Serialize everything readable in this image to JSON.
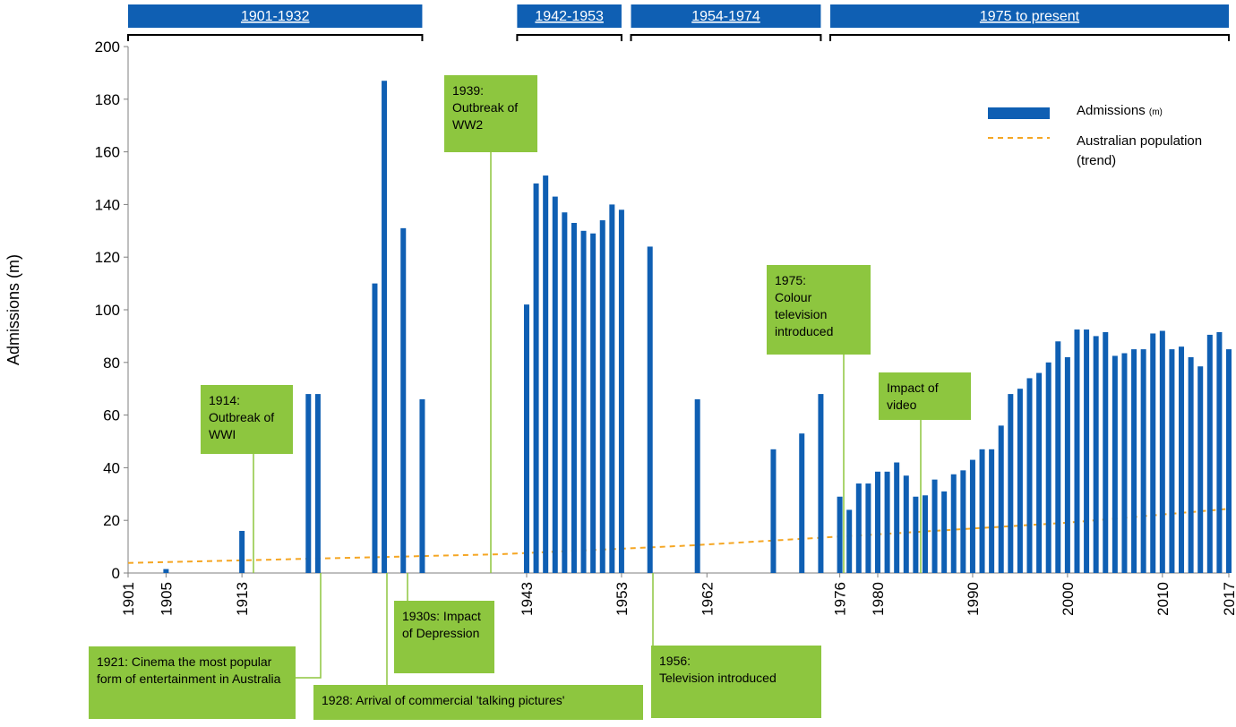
{
  "chart_data": {
    "type": "bar",
    "ylabel": "Admissions (m)",
    "xlabel": "",
    "ylim": [
      0,
      200
    ],
    "y_ticks": [
      0,
      20,
      40,
      60,
      80,
      100,
      120,
      140,
      160,
      180,
      200
    ],
    "x_range": [
      1901,
      2017
    ],
    "x_tick_labels": [
      "1901",
      "1905",
      "1913",
      "1943",
      "1953",
      "1962",
      "1976",
      "1980",
      "1990",
      "2000",
      "2010",
      "2017"
    ],
    "grid": false,
    "legend_position": "top-right",
    "colors": {
      "bars": "#0f5fb3",
      "trend": "#f5a623",
      "annotation_fill": "#8dc63f",
      "period_band": "#0f5fb3"
    },
    "series": [
      {
        "name": "Admissions",
        "name_unit": "(m)",
        "type": "bar",
        "x": [
          1905,
          1913,
          1920,
          1921,
          1927,
          1928,
          1930,
          1932,
          1943,
          1944,
          1945,
          1946,
          1947,
          1948,
          1949,
          1950,
          1951,
          1952,
          1953,
          1956,
          1961,
          1969,
          1972,
          1974,
          1976,
          1977,
          1978,
          1979,
          1980,
          1981,
          1982,
          1983,
          1984,
          1985,
          1986,
          1987,
          1988,
          1989,
          1990,
          1991,
          1992,
          1993,
          1994,
          1995,
          1996,
          1997,
          1998,
          1999,
          2000,
          2001,
          2002,
          2003,
          2004,
          2005,
          2006,
          2007,
          2008,
          2009,
          2010,
          2011,
          2012,
          2013,
          2014,
          2015,
          2016,
          2017
        ],
        "values": [
          1.5,
          16,
          68,
          68,
          110,
          187,
          131,
          66,
          102,
          148,
          151,
          143,
          137,
          133,
          130,
          129,
          134,
          140,
          138,
          124,
          66,
          47,
          53,
          68,
          29,
          24,
          34,
          34,
          38.5,
          38.5,
          42,
          37,
          29,
          29.5,
          35.5,
          31,
          37.5,
          39,
          43,
          47,
          47,
          56,
          68,
          70,
          74,
          76,
          80,
          88,
          82,
          92.5,
          92.5,
          90,
          91.5,
          82.5,
          83.5,
          85,
          85,
          91,
          92,
          85,
          86,
          82,
          78.5,
          90.5,
          91.5,
          85
        ]
      },
      {
        "name": "Australian population\n(trend)",
        "type": "line",
        "style": "dashed",
        "x": [
          1901,
          1920,
          1940,
          1960,
          1980,
          2000,
          2017
        ],
        "values": [
          3.8,
          5.4,
          7.1,
          10.4,
          14.7,
          19.1,
          24.4
        ]
      }
    ],
    "periods": [
      {
        "label": "1901-1932",
        "start": 1901,
        "end": 1932
      },
      {
        "label": "1942-1953",
        "start": 1942,
        "end": 1953
      },
      {
        "label": "1954-1974",
        "start": 1954,
        "end": 1974
      },
      {
        "label": "1975 to present",
        "start": 1975,
        "end": 2017
      }
    ],
    "annotations": [
      {
        "lines": [
          "1914:",
          "Outbreak of",
          "WWI"
        ],
        "year": 1914
      },
      {
        "lines": [
          "1939:",
          "Outbreak of",
          "WW2"
        ],
        "year": 1939
      },
      {
        "lines": [
          "1975:",
          "Colour",
          "television",
          "introduced"
        ],
        "year": 1975
      },
      {
        "lines": [
          "Impact of",
          "video"
        ],
        "year": 1983
      },
      {
        "lines": [
          "1921: Cinema the most popular",
          "form of entertainment in Australia"
        ],
        "year": 1921
      },
      {
        "lines": [
          "1928: Arrival of commercial 'talking pictures'"
        ],
        "year": 1928
      },
      {
        "lines": [
          "1930s: Impact",
          "of Depression"
        ],
        "year": 1931
      },
      {
        "lines": [
          "1956:",
          "Television introduced"
        ],
        "year": 1955
      }
    ]
  }
}
